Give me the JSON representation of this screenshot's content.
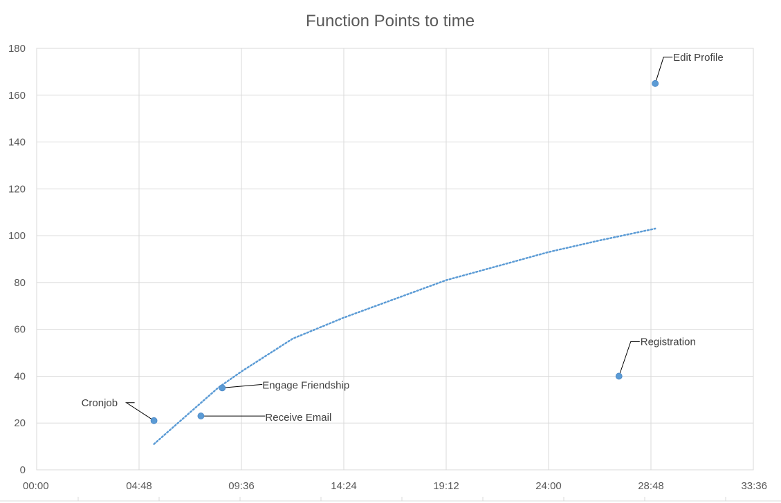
{
  "chart_data": {
    "type": "scatter",
    "title": "Function Points to time",
    "xlabel": "",
    "ylabel": "",
    "x_axis_format": "mm:ss",
    "xlim": [
      "00:00",
      "33:36"
    ],
    "ylim": [
      0,
      180
    ],
    "x_ticks": [
      "00:00",
      "04:48",
      "09:36",
      "14:24",
      "19:12",
      "24:00",
      "28:48",
      "33:36"
    ],
    "y_ticks": [
      0,
      20,
      40,
      60,
      80,
      100,
      120,
      140,
      160,
      180
    ],
    "grid": true,
    "marker_color": "#5b9bd5",
    "trendline_color": "#5b9bd5",
    "trendline_style": "dotted",
    "trendline_type": "logarithmic",
    "points": [
      {
        "label": "Cronjob",
        "x": "05:30",
        "y": 21
      },
      {
        "label": "Receive Email",
        "x": "07:42",
        "y": 23
      },
      {
        "label": "Engage Friendship",
        "x": "08:42",
        "y": 35
      },
      {
        "label": "Registration",
        "x": "27:18",
        "y": 40
      },
      {
        "label": "Edit Profile",
        "x": "29:00",
        "y": 165
      }
    ],
    "trendline": [
      {
        "x": "05:30",
        "y": 11
      },
      {
        "x": "06:30",
        "y": 19
      },
      {
        "x": "07:30",
        "y": 27
      },
      {
        "x": "08:30",
        "y": 35
      },
      {
        "x": "09:36",
        "y": 42
      },
      {
        "x": "12:00",
        "y": 56
      },
      {
        "x": "14:24",
        "y": 65
      },
      {
        "x": "16:48",
        "y": 73
      },
      {
        "x": "19:12",
        "y": 81
      },
      {
        "x": "21:36",
        "y": 87
      },
      {
        "x": "24:00",
        "y": 93
      },
      {
        "x": "26:24",
        "y": 98
      },
      {
        "x": "29:00",
        "y": 103
      }
    ]
  }
}
